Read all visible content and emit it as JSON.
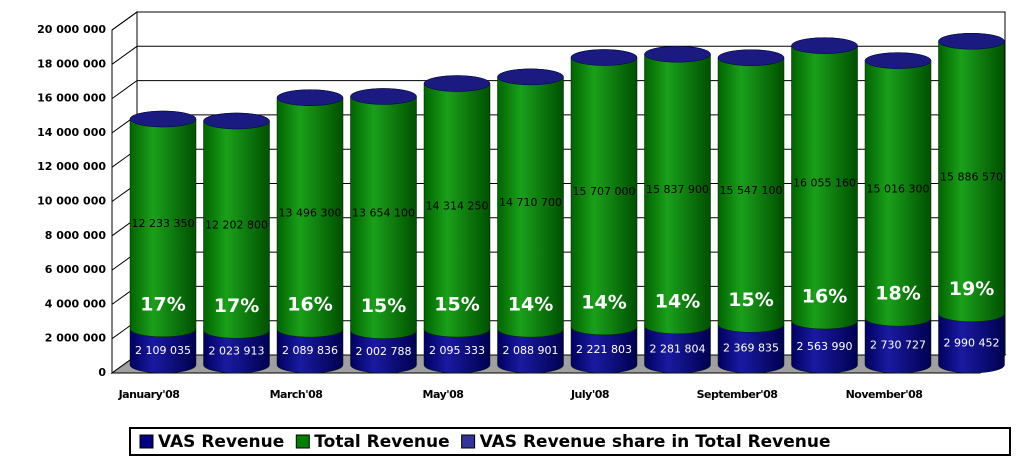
{
  "chart_data": {
    "type": "bar3d_stacked",
    "categories": [
      "January'08",
      null,
      "March'08",
      null,
      "May'08",
      null,
      "July'08",
      null,
      "September'08",
      null,
      "November'08",
      null
    ],
    "series": [
      {
        "name": "VAS Revenue",
        "color": "#000080",
        "values": [
          2109035,
          2023913,
          2089836,
          2002788,
          2095333,
          2088901,
          2221803,
          2281804,
          2369835,
          2563990,
          2730727,
          2990452
        ],
        "value_labels": [
          "2 109 035",
          "2 023 913",
          "2 089 836",
          "2 002 788",
          "2 095 333",
          "2 088 901",
          "2 221 803",
          "2 281 804",
          "2 369 835",
          "2 563 990",
          "2 730 727",
          "2 990 452"
        ]
      },
      {
        "name": "Total Revenue",
        "color": "#008000",
        "values": [
          12233350,
          12202800,
          13496300,
          13654100,
          14314250,
          14710700,
          15707000,
          15837900,
          15547100,
          16055160,
          15016300,
          15886570
        ],
        "value_labels": [
          "12 233 350",
          "12 202 800",
          "13 496 300",
          "13 654 100",
          "14 314 250",
          "14 710 700",
          "15 707 000",
          "15 837 900",
          "15 547 100",
          "16 055 160",
          "15 016 300",
          "15 886 570"
        ]
      },
      {
        "name": "VAS Revenue share in Total Revenue",
        "color": "#333399",
        "values": [
          17,
          17,
          16,
          15,
          15,
          14,
          14,
          14,
          15,
          16,
          18,
          19
        ],
        "value_labels": [
          "17%",
          "17%",
          "16%",
          "15%",
          "15%",
          "14%",
          "14%",
          "14%",
          "15%",
          "16%",
          "18%",
          "19%"
        ]
      }
    ],
    "ylim": [
      0,
      20000000
    ],
    "yticks": [
      0,
      {
        "value": 2000000,
        "label": "2 000 000"
      },
      {
        "value": 4000000,
        "label": "4 000 000"
      },
      {
        "value": 6000000,
        "label": "6 000 000"
      },
      {
        "value": 8000000,
        "label": "8 000 000"
      },
      {
        "value": 10000000,
        "label": "10 000 000"
      },
      {
        "value": 12000000,
        "label": "12 000 000"
      },
      {
        "value": 14000000,
        "label": "14 000 000"
      },
      {
        "value": 16000000,
        "label": "16 000 000"
      },
      {
        "value": 18000000,
        "label": "18 000 000"
      },
      {
        "value": 20000000,
        "label": "20 000 000"
      }
    ],
    "grid": true,
    "legend": "bottom"
  }
}
